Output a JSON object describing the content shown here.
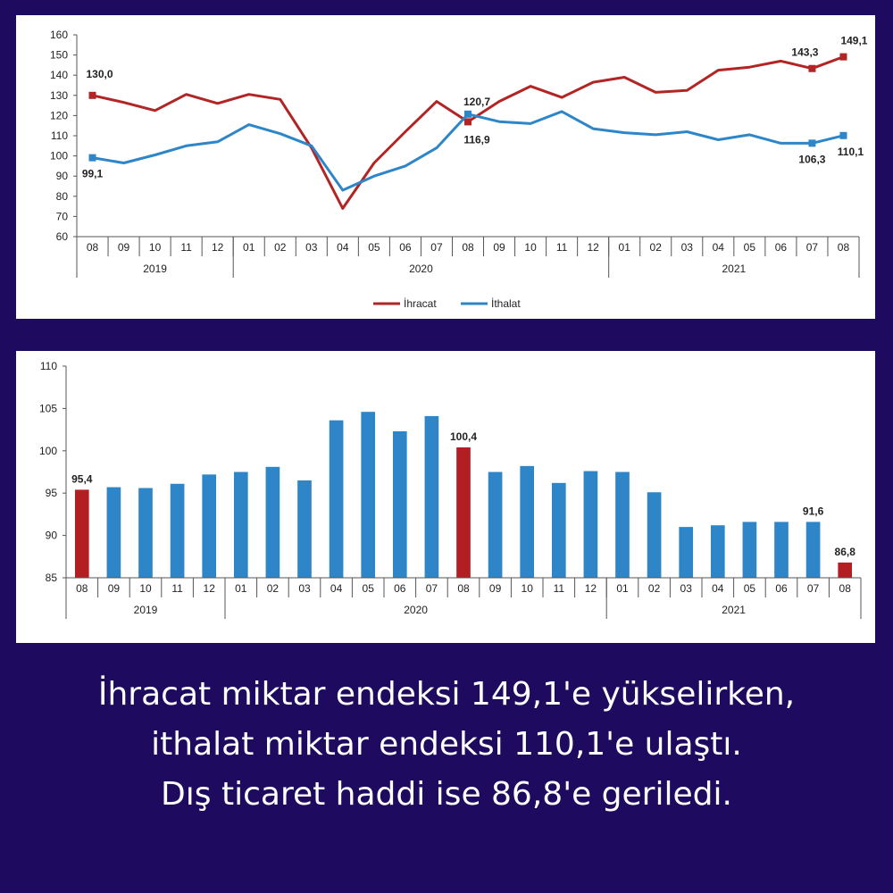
{
  "chart_data": [
    {
      "type": "line",
      "x": [
        "08",
        "09",
        "10",
        "11",
        "12",
        "01",
        "02",
        "03",
        "04",
        "05",
        "06",
        "07",
        "08",
        "09",
        "10",
        "11",
        "12",
        "01",
        "02",
        "03",
        "04",
        "05",
        "06",
        "07",
        "08"
      ],
      "year_groups": [
        {
          "label": "2019",
          "start": 0,
          "end": 4
        },
        {
          "label": "2020",
          "start": 5,
          "end": 16
        },
        {
          "label": "2021",
          "start": 17,
          "end": 24
        }
      ],
      "ylim": [
        60,
        160
      ],
      "yticks": [
        60,
        70,
        80,
        90,
        100,
        110,
        120,
        130,
        140,
        150,
        160
      ],
      "legend_position": "bottom-center",
      "series": [
        {
          "name": "İhracat",
          "color": "#b22525",
          "values": [
            130.0,
            126.5,
            122.5,
            130.5,
            126.0,
            130.5,
            128.0,
            104.0,
            74.0,
            96.5,
            112.0,
            127.0,
            116.9,
            127.0,
            134.5,
            129.0,
            136.5,
            139.0,
            131.5,
            132.5,
            142.5,
            144.0,
            147.0,
            143.3,
            149.1
          ],
          "markers": [
            0,
            12,
            23,
            24
          ],
          "labels": {
            "0": "130,0",
            "12": "116,9",
            "23": "143,3",
            "24": "149,1"
          }
        },
        {
          "name": "İthalat",
          "color": "#2e86c8",
          "values": [
            99.1,
            96.5,
            100.5,
            105.0,
            107.0,
            115.5,
            111.0,
            105.0,
            83.0,
            90.0,
            95.0,
            104.0,
            120.7,
            117.0,
            116.0,
            122.0,
            113.5,
            111.5,
            110.5,
            112.0,
            108.0,
            110.5,
            106.3,
            106.3,
            110.1
          ],
          "markers": [
            0,
            12,
            23,
            24
          ],
          "labels": {
            "0": "99,1",
            "12": "120,7",
            "23": "106,3",
            "24": "110,1"
          }
        }
      ]
    },
    {
      "type": "bar",
      "categories": [
        "08",
        "09",
        "10",
        "11",
        "12",
        "01",
        "02",
        "03",
        "04",
        "05",
        "06",
        "07",
        "08",
        "09",
        "10",
        "11",
        "12",
        "01",
        "02",
        "03",
        "04",
        "05",
        "06",
        "07",
        "08"
      ],
      "year_groups": [
        {
          "label": "2019",
          "start": 0,
          "end": 4
        },
        {
          "label": "2020",
          "start": 5,
          "end": 16
        },
        {
          "label": "2021",
          "start": 17,
          "end": 24
        }
      ],
      "values": [
        95.4,
        95.7,
        95.6,
        96.1,
        97.2,
        97.5,
        98.1,
        96.5,
        103.6,
        104.6,
        102.3,
        104.1,
        100.4,
        97.5,
        98.2,
        96.2,
        97.6,
        97.5,
        95.1,
        91.0,
        91.2,
        91.6,
        91.6,
        91.6,
        86.8
      ],
      "highlight": [
        0,
        12,
        24
      ],
      "colors": {
        "default": "#2e86c8",
        "highlight": "#b21e22"
      },
      "labels": {
        "0": "95,4",
        "12": "100,4",
        "23": "91,6",
        "24": "86,8"
      },
      "ylim": [
        85,
        110
      ],
      "yticks": [
        85,
        90,
        95,
        100,
        105,
        110
      ]
    }
  ],
  "caption": {
    "line1": "İhracat miktar endeksi 149,1'e yükselirken,",
    "line2": "ithalat miktar endeksi 110,1'e ulaştı.",
    "line3": "Dış ticaret haddi ise 86,8'e geriledi."
  }
}
